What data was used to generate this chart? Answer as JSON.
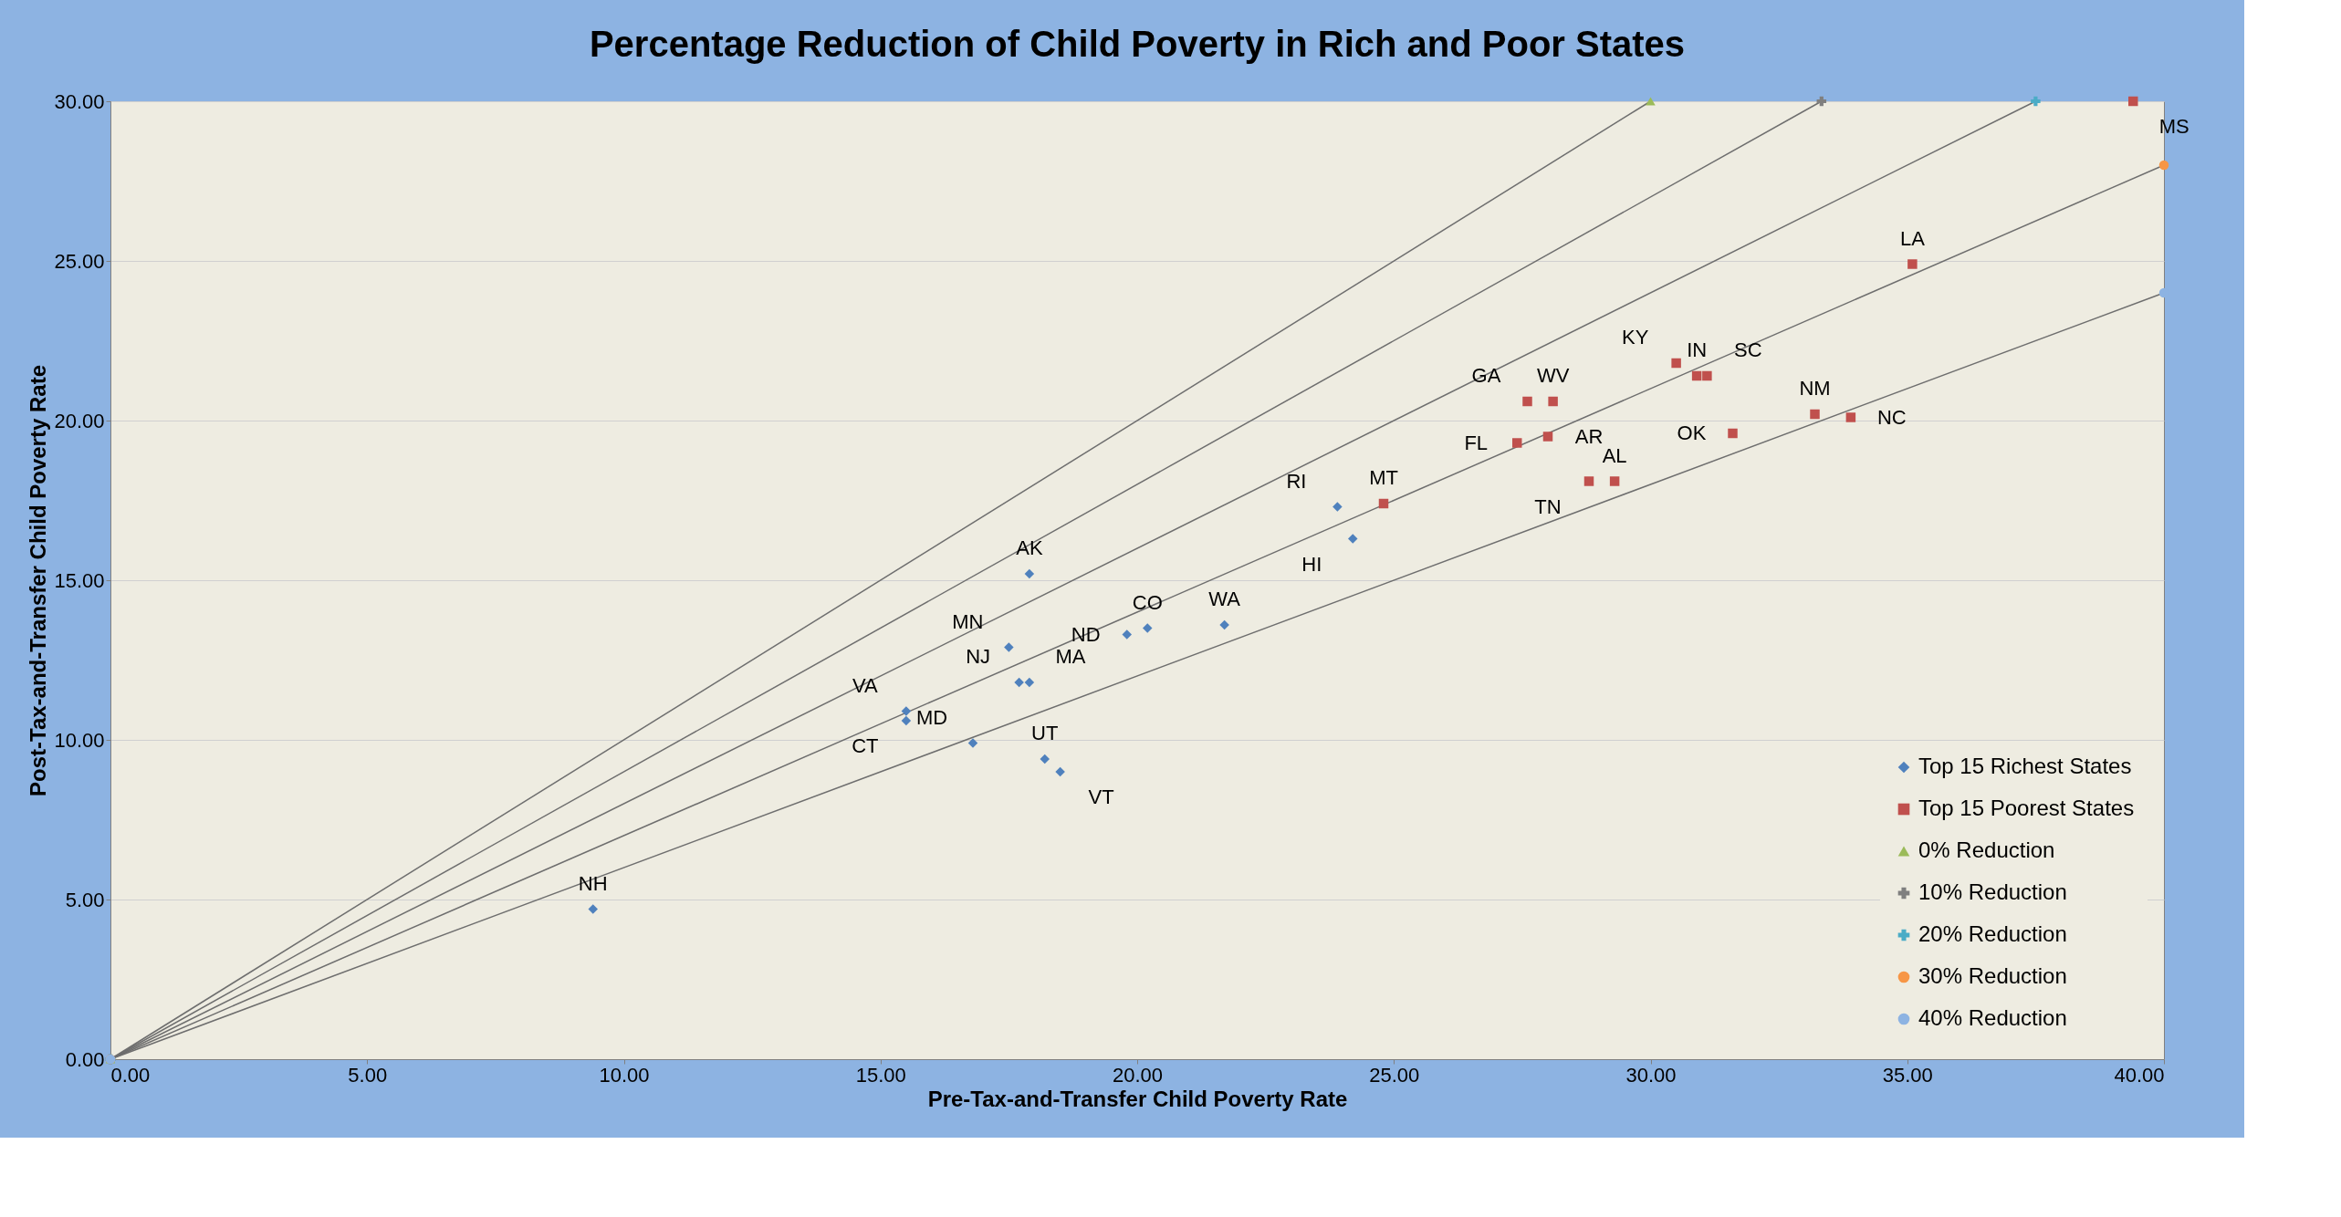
{
  "chart_data": {
    "type": "scatter",
    "title": "Percentage Reduction of Child Poverty in Rich and Poor States",
    "xlabel": "Pre-Tax-and-Transfer Child Poverty Rate",
    "ylabel": "Post-Tax-and-Transfer Child Poverty Rate",
    "xlim": [
      0,
      40
    ],
    "ylim": [
      0,
      30
    ],
    "xticks": [
      {
        "value": 0,
        "label": "0.00"
      },
      {
        "value": 5,
        "label": "5.00"
      },
      {
        "value": 10,
        "label": "10.00"
      },
      {
        "value": 15,
        "label": "15.00"
      },
      {
        "value": 20,
        "label": "20.00"
      },
      {
        "value": 25,
        "label": "25.00"
      },
      {
        "value": 30,
        "label": "30.00"
      },
      {
        "value": 35,
        "label": "35.00"
      },
      {
        "value": 40,
        "label": "40.00"
      }
    ],
    "yticks": [
      {
        "value": 0,
        "label": "0.00"
      },
      {
        "value": 5,
        "label": "5.00"
      },
      {
        "value": 10,
        "label": "10.00"
      },
      {
        "value": 15,
        "label": "15.00"
      },
      {
        "value": 20,
        "label": "20.00"
      },
      {
        "value": 25,
        "label": "25.00"
      },
      {
        "value": 30,
        "label": "30.00"
      }
    ],
    "grid": "y",
    "legend": "bottom right",
    "series": [
      {
        "name": "Top 15 Richest States",
        "marker": "diamond",
        "color": "#4f81bd",
        "x": [
          9.4,
          15.5,
          15.5,
          16.8,
          18.2,
          18.5,
          17.7,
          17.9,
          17.5,
          17.9,
          19.8,
          20.2,
          21.7,
          23.9,
          24.2
        ],
        "values": [
          4.7,
          10.9,
          10.6,
          9.9,
          9.4,
          9.0,
          11.8,
          11.8,
          12.9,
          15.2,
          13.3,
          13.5,
          13.6,
          17.3,
          16.3
        ],
        "value_labels": [
          "NH",
          "VA",
          "CT",
          "MD",
          "UT",
          "VT",
          "NJ",
          "MA",
          "MN",
          "AK",
          "ND",
          "CO",
          "WA",
          "RI",
          "HI"
        ]
      },
      {
        "name": "Top 15 Poorest States",
        "marker": "square",
        "color": "#c0504d",
        "x": [
          24.8,
          27.4,
          28.0,
          27.6,
          28.1,
          28.8,
          29.3,
          30.5,
          30.9,
          31.1,
          31.6,
          33.2,
          33.9,
          35.1,
          39.4
        ],
        "values": [
          17.4,
          19.3,
          19.5,
          20.6,
          20.6,
          18.1,
          18.1,
          21.8,
          21.4,
          21.4,
          19.6,
          20.2,
          20.1,
          24.9,
          30.0
        ],
        "value_labels": [
          "MT",
          "FL",
          "AR",
          "GA",
          "WV",
          "TN",
          "AL",
          "KY",
          "IN",
          "SC",
          "OK",
          "NM",
          "NC",
          "LA",
          "MS"
        ]
      },
      {
        "name": "0% Reduction",
        "type": "line",
        "marker": "triangle",
        "color": "#9bbb59",
        "x": [
          0,
          30
        ],
        "values": [
          0,
          30
        ]
      },
      {
        "name": "10% Reduction",
        "type": "line",
        "marker": "cross",
        "color": "#7f7f7f",
        "x": [
          0,
          33.33
        ],
        "values": [
          0,
          30
        ]
      },
      {
        "name": "20% Reduction",
        "type": "line",
        "marker": "cross",
        "color": "#4bacc6",
        "x": [
          0,
          37.5
        ],
        "values": [
          0,
          30
        ]
      },
      {
        "name": "30% Reduction",
        "type": "line",
        "marker": "circle",
        "color": "#f79646",
        "x": [
          0,
          40
        ],
        "values": [
          0,
          28
        ]
      },
      {
        "name": "40% Reduction",
        "type": "line",
        "marker": "circle",
        "color": "#8db3e2",
        "x": [
          0,
          40
        ],
        "values": [
          0,
          24
        ]
      }
    ]
  }
}
